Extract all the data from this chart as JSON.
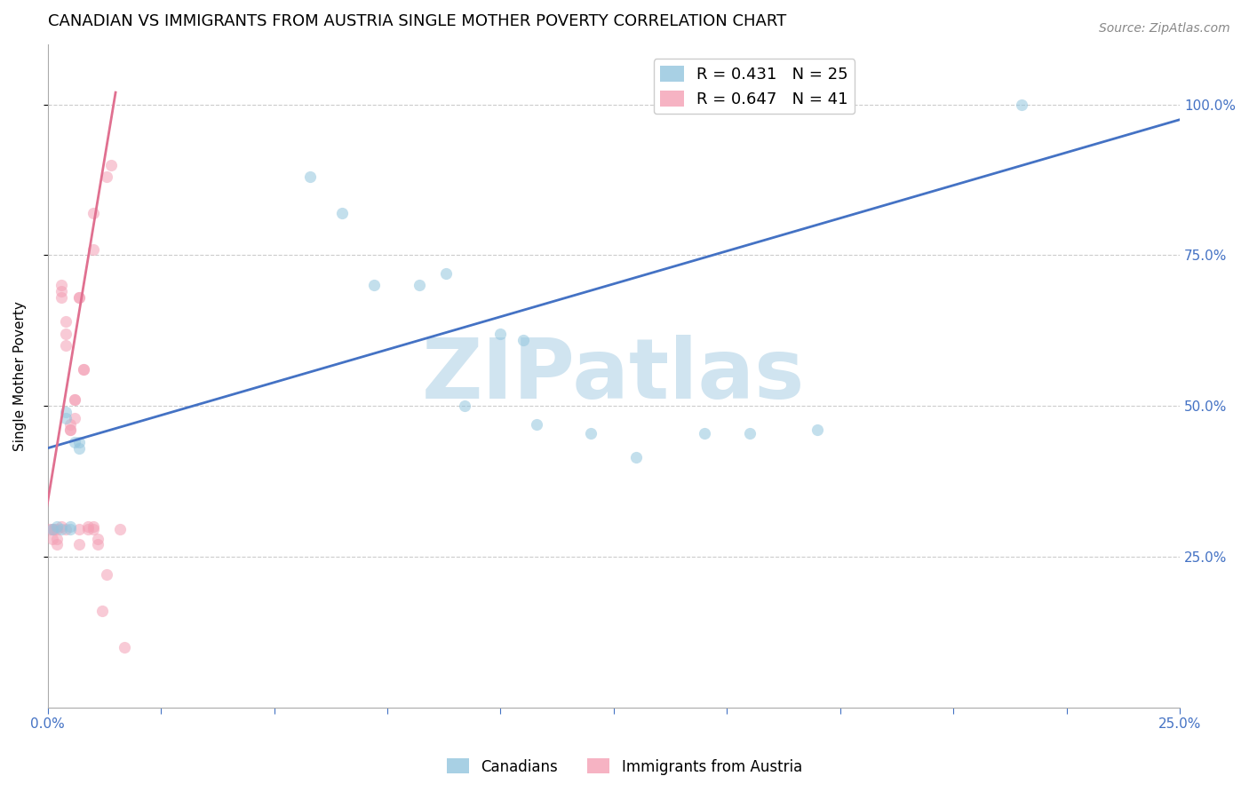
{
  "title": "CANADIAN VS IMMIGRANTS FROM AUSTRIA SINGLE MOTHER POVERTY CORRELATION CHART",
  "source": "Source: ZipAtlas.com",
  "ylabel": "Single Mother Poverty",
  "xlim": [
    0.0,
    0.25
  ],
  "ylim": [
    0.0,
    1.1
  ],
  "yticks": [
    0.25,
    0.5,
    0.75,
    1.0
  ],
  "ytick_labels": [
    "25.0%",
    "50.0%",
    "75.0%",
    "100.0%"
  ],
  "xticks": [
    0.0,
    0.025,
    0.05,
    0.075,
    0.1,
    0.125,
    0.15,
    0.175,
    0.2,
    0.225,
    0.25
  ],
  "xlabel_labels_show": [
    "0.0%",
    "25.0%"
  ],
  "xlabel_ticks_show": [
    0.0,
    0.25
  ],
  "legend1_label": "R = 0.431   N = 25",
  "legend2_label": "R = 0.647   N = 41",
  "legend1_color": "#92c5de",
  "legend2_color": "#f4a0b5",
  "canadians_x": [
    0.001,
    0.002,
    0.003,
    0.004,
    0.004,
    0.005,
    0.005,
    0.006,
    0.007,
    0.007,
    0.058,
    0.065,
    0.072,
    0.082,
    0.088,
    0.092,
    0.1,
    0.105,
    0.108,
    0.12,
    0.13,
    0.145,
    0.155,
    0.17,
    0.215
  ],
  "canadians_y": [
    0.295,
    0.3,
    0.295,
    0.48,
    0.49,
    0.295,
    0.3,
    0.44,
    0.44,
    0.43,
    0.88,
    0.82,
    0.7,
    0.7,
    0.72,
    0.5,
    0.62,
    0.61,
    0.47,
    0.455,
    0.415,
    0.455,
    0.455,
    0.46,
    1.0
  ],
  "austria_x": [
    0.0005,
    0.001,
    0.001,
    0.0015,
    0.002,
    0.002,
    0.002,
    0.003,
    0.003,
    0.003,
    0.003,
    0.004,
    0.004,
    0.004,
    0.004,
    0.005,
    0.005,
    0.005,
    0.006,
    0.006,
    0.006,
    0.007,
    0.007,
    0.007,
    0.007,
    0.008,
    0.008,
    0.009,
    0.009,
    0.01,
    0.01,
    0.01,
    0.01,
    0.011,
    0.011,
    0.012,
    0.013,
    0.013,
    0.014,
    0.016,
    0.017
  ],
  "austria_y": [
    0.295,
    0.295,
    0.28,
    0.295,
    0.27,
    0.28,
    0.295,
    0.68,
    0.69,
    0.7,
    0.3,
    0.6,
    0.62,
    0.64,
    0.295,
    0.46,
    0.46,
    0.47,
    0.51,
    0.51,
    0.48,
    0.68,
    0.68,
    0.295,
    0.27,
    0.56,
    0.56,
    0.295,
    0.3,
    0.82,
    0.76,
    0.3,
    0.295,
    0.27,
    0.28,
    0.16,
    0.22,
    0.88,
    0.9,
    0.295,
    0.1
  ],
  "blue_line_x": [
    0.0,
    0.25
  ],
  "blue_line_y": [
    0.43,
    0.975
  ],
  "pink_line_x": [
    -0.001,
    0.015
  ],
  "pink_line_y": [
    0.295,
    1.02
  ],
  "scatter_alpha": 0.55,
  "scatter_size": 90,
  "watermark_text": "ZIPatlas",
  "watermark_color": "#d0e4f0",
  "title_fontsize": 13,
  "axis_label_fontsize": 11,
  "tick_fontsize": 11,
  "right_tick_color": "#4472c4",
  "bottom_tick_color": "#4472c4"
}
